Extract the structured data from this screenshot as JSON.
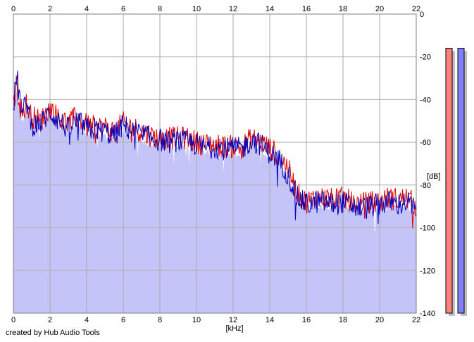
{
  "footer": {
    "credit": "created by Hub Audio Tools"
  },
  "chart_data": {
    "type": "line",
    "title": "",
    "xlabel": "[kHz]",
    "ylabel": "[dB]",
    "xlim": [
      0,
      22
    ],
    "ylim": [
      -140,
      0
    ],
    "x_ticks": [
      "0",
      "2",
      "4",
      "6",
      "8",
      "10",
      "12",
      "14",
      "16",
      "18",
      "20",
      "22"
    ],
    "y_ticks": [
      "0",
      "-20",
      "-40",
      "-60",
      "-80",
      "-100",
      "-120",
      "-140"
    ],
    "grid": true,
    "legend": "none",
    "x_unit": "kHz",
    "y_unit": "dB",
    "series": [
      {
        "color": "#e00000",
        "x": [
          0,
          0.1,
          0.2,
          0.3,
          0.5,
          0.7,
          1,
          1.5,
          2,
          2.5,
          3,
          3.5,
          4,
          4.5,
          5,
          5.5,
          6,
          6.5,
          7,
          7.5,
          8,
          8.5,
          9,
          9.5,
          10,
          10.5,
          11,
          11.5,
          12,
          12.5,
          13,
          13.5,
          14,
          14.5,
          15,
          15.5,
          16,
          16.5,
          17,
          17.5,
          18,
          18.5,
          19,
          19.5,
          20,
          20.5,
          21,
          21.5,
          22
        ],
        "values": [
          -45,
          -36,
          -32,
          -40,
          -47,
          -42,
          -48,
          -50,
          -44,
          -49,
          -51,
          -48,
          -52,
          -53,
          -53,
          -55,
          -51,
          -53,
          -55,
          -57,
          -58,
          -58,
          -58,
          -58,
          -60,
          -61,
          -61,
          -62,
          -62,
          -62,
          -58,
          -60,
          -63,
          -66,
          -72,
          -84,
          -88,
          -86,
          -86,
          -87,
          -86,
          -88,
          -89,
          -88,
          -88,
          -86,
          -87,
          -86,
          -90
        ]
      },
      {
        "color": "#0000c0",
        "x": [
          0,
          0.1,
          0.2,
          0.3,
          0.5,
          0.7,
          1,
          1.5,
          2,
          2.5,
          3,
          3.5,
          4,
          4.5,
          5,
          5.5,
          6,
          6.5,
          7,
          7.5,
          8,
          8.5,
          9,
          9.5,
          10,
          10.5,
          11,
          11.5,
          12,
          12.5,
          13,
          13.5,
          14,
          14.5,
          15,
          15.5,
          16,
          16.5,
          17,
          17.5,
          18,
          18.5,
          19,
          19.5,
          20,
          20.5,
          21,
          21.5,
          22
        ],
        "values": [
          -44,
          -35,
          -29,
          -37,
          -48,
          -40,
          -52,
          -51,
          -46,
          -50,
          -54,
          -50,
          -54,
          -54,
          -55,
          -57,
          -52,
          -55,
          -56,
          -58,
          -59,
          -60,
          -59,
          -60,
          -61,
          -63,
          -62,
          -63,
          -63,
          -63,
          -59,
          -61,
          -65,
          -68,
          -75,
          -86,
          -89,
          -88,
          -88,
          -89,
          -88,
          -90,
          -91,
          -90,
          -89,
          -88,
          -89,
          -88,
          -92
        ]
      }
    ],
    "area_color": "#c4c4f8",
    "level_meters": [
      {
        "channel": "left",
        "color": "#ff8080",
        "value_db": -16
      },
      {
        "channel": "right",
        "color": "#8080ff",
        "value_db": -16
      }
    ]
  }
}
